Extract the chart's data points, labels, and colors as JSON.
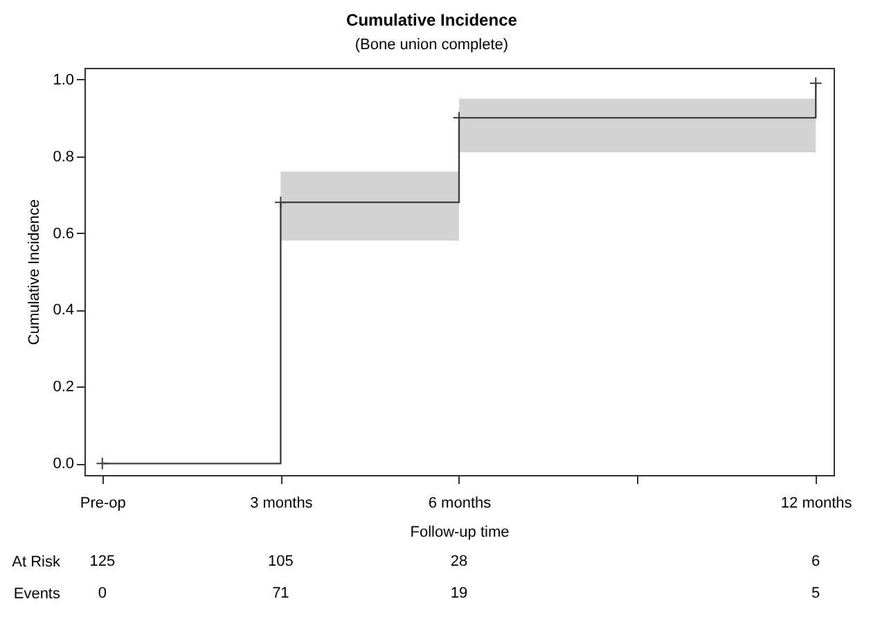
{
  "chart_data": {
    "type": "step",
    "title": "Cumulative Incidence",
    "subtitle": "(Bone union complete)",
    "xlabel": "Follow-up time",
    "ylabel": "Cumulative Incidence",
    "x": [
      0,
      3,
      6,
      12
    ],
    "series": [
      {
        "color": "#3f3f3f",
        "values": [
          0,
          0.68,
          0.9,
          0.99
        ],
        "lower": [
          null,
          0.58,
          0.81,
          0.81
        ],
        "upper": [
          null,
          0.76,
          0.95,
          0.95
        ]
      }
    ],
    "xlim": [
      -0.3,
      12.3
    ],
    "xticks": [
      {
        "value": 0,
        "label": "Pre-op"
      },
      {
        "value": 3,
        "label": "3 months"
      },
      {
        "value": 6,
        "label": "6 months"
      },
      {
        "value": 9,
        "label": null
      },
      {
        "value": 12,
        "label": "12 months"
      }
    ],
    "ylim": [
      -0.03,
      1.03
    ],
    "yticks": [
      {
        "value": 0,
        "label": "0.0"
      },
      0.2,
      0.4,
      0.6,
      0.8,
      {
        "value": 1,
        "label": "1.0"
      }
    ],
    "marker": "cross",
    "grid": false,
    "annotations": [
      "At Risk",
      "125",
      "105",
      "28",
      "6",
      "Events",
      "0",
      "71",
      "19",
      "5"
    ]
  }
}
